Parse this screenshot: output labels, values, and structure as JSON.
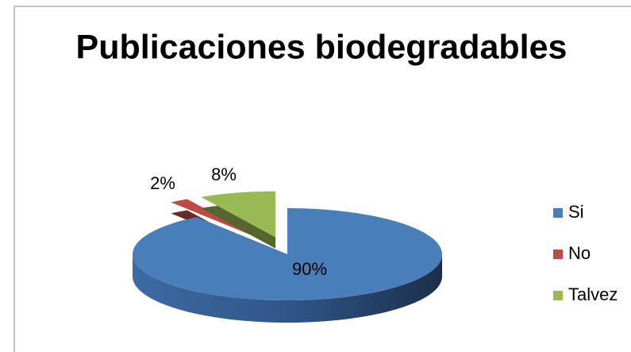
{
  "chart_data": {
    "type": "pie3d",
    "title": "Publicaciones biodegradables",
    "categories": [
      "Si",
      "No",
      "Talvez"
    ],
    "values": [
      90,
      2,
      8
    ],
    "value_labels": [
      "90%",
      "2%",
      "8%"
    ],
    "colors": [
      "#4a7ebb",
      "#be4b48",
      "#98b954"
    ],
    "legend": "right"
  }
}
